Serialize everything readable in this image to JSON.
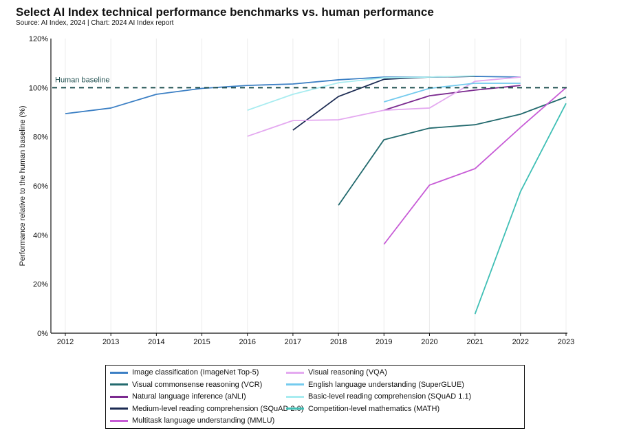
{
  "title": "Select AI Index technical performance benchmarks vs. human performance",
  "subtitle": "Source: AI Index, 2024 | Chart: 2024 AI Index report",
  "chart_data": {
    "type": "line",
    "title": "Select AI Index technical performance benchmarks vs. human performance",
    "xlabel": "",
    "ylabel": "Performance relative to the human baseline (%)",
    "xlim": [
      2012,
      2023
    ],
    "ylim": [
      0,
      120
    ],
    "x_ticks": [
      "2012",
      "2013",
      "2014",
      "2015",
      "2016",
      "2017",
      "2018",
      "2019",
      "2020",
      "2021",
      "2022",
      "2023"
    ],
    "y_ticks": [
      0,
      20,
      40,
      60,
      80,
      100,
      120
    ],
    "y_tick_labels": [
      "0%",
      "20%",
      "40%",
      "60%",
      "80%",
      "100%",
      "120%"
    ],
    "grid": "vertical",
    "legend_position": "bottom",
    "reference_line": {
      "label": "Human baseline",
      "value": 100,
      "color": "#1f4f4f",
      "style": "dashed"
    },
    "series": [
      {
        "name": "Image classification (ImageNet Top-5)",
        "color": "#3b7fc4",
        "x": [
          2012,
          2013,
          2014,
          2015,
          2016,
          2017,
          2018,
          2019,
          2020,
          2021,
          2022
        ],
        "y": [
          89.4,
          91.7,
          97.3,
          99.7,
          100.9,
          101.5,
          103.2,
          104.3,
          104.3,
          104.6,
          104.3
        ]
      },
      {
        "name": "Visual commonsense reasoning (VCR)",
        "color": "#236a6e",
        "x": [
          2018,
          2019,
          2020,
          2021,
          2022,
          2023
        ],
        "y": [
          52.1,
          78.8,
          83.5,
          84.9,
          89.2,
          96.2
        ]
      },
      {
        "name": "Natural language inference (aNLI)",
        "color": "#7b2a8f",
        "x": [
          2019,
          2020,
          2021,
          2022
        ],
        "y": [
          90.8,
          96.7,
          99.0,
          100.9
        ]
      },
      {
        "name": "Medium-level reading comprehension (SQuAD 2.0)",
        "color": "#1b2a52",
        "x": [
          2017,
          2018,
          2019,
          2020,
          2021
        ],
        "y": [
          82.7,
          96.4,
          103.4,
          104.3,
          104.6
        ]
      },
      {
        "name": "Multitask language understanding (MMLU)",
        "color": "#c75bd6",
        "x": [
          2019,
          2020,
          2021,
          2022,
          2023
        ],
        "y": [
          36.2,
          60.3,
          67.0,
          83.8,
          100.0
        ]
      },
      {
        "name": "Visual reasoning (VQA)",
        "color": "#e4a9f0",
        "x": [
          2016,
          2017,
          2018,
          2019,
          2020,
          2021,
          2022
        ],
        "y": [
          80.2,
          86.6,
          86.9,
          90.8,
          91.7,
          102.6,
          104.3
        ]
      },
      {
        "name": "English language understanding (SuperGLUE)",
        "color": "#74cbee",
        "x": [
          2019,
          2020,
          2021,
          2022
        ],
        "y": [
          94.2,
          99.7,
          101.8,
          101.8
        ]
      },
      {
        "name": "Basic-level reading comprehension (SQuAD 1.1)",
        "color": "#a8ecf0",
        "x": [
          2016,
          2017,
          2018,
          2019,
          2020,
          2021
        ],
        "y": [
          90.8,
          97.3,
          102.0,
          104.0,
          104.3,
          104.8
        ]
      },
      {
        "name": "Competition-level mathematics (MATH)",
        "color": "#3fbfb5",
        "x": [
          2021,
          2022,
          2023
        ],
        "y": [
          7.8,
          57.7,
          93.6
        ]
      }
    ],
    "legend_order": [
      0,
      1,
      2,
      3,
      4,
      5,
      6,
      7,
      8
    ]
  }
}
